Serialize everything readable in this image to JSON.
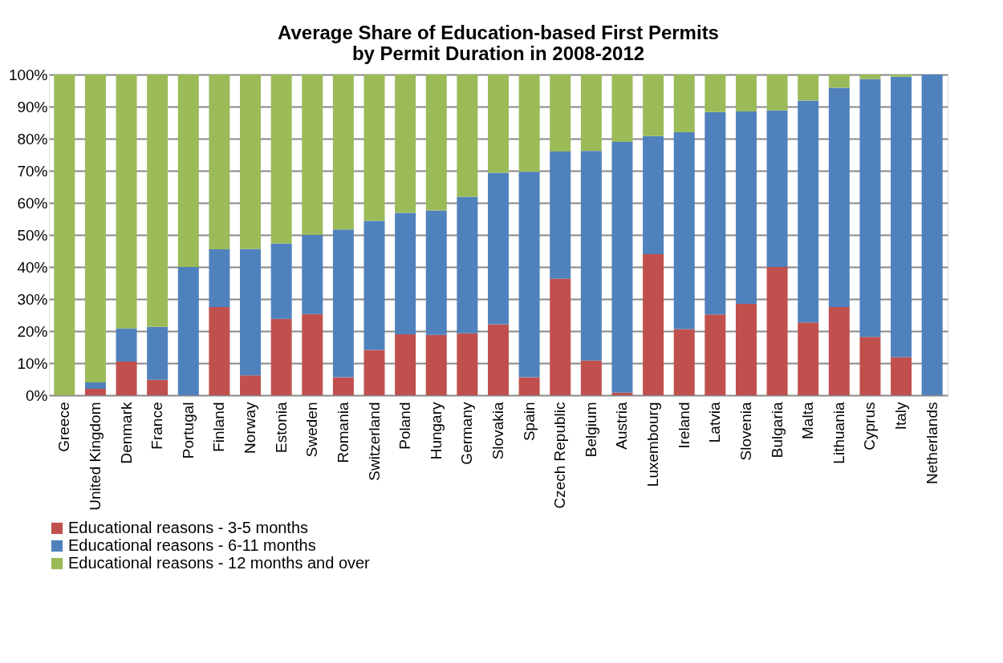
{
  "chart_data": {
    "type": "bar",
    "stacked": true,
    "title": "Average Share of Education-based  First Permits\nby Permit Duration in 2008-2012",
    "categories": [
      "Greece",
      "United Kingdom",
      "Denmark",
      "France",
      "Portugal",
      "Finland",
      "Norway",
      "Estonia",
      "Sweden",
      "Romania",
      "Switzerland",
      "Poland",
      "Hungary",
      "Germany",
      "Slovakia",
      "Spain",
      "Czech Republic",
      "Belgium",
      "Austria",
      "Luxembourg",
      "Ireland",
      "Latvia",
      "Slovenia",
      "Bulgaria",
      "Malta",
      "Lithuania",
      "Cyprus",
      "Italy",
      "Netherlands"
    ],
    "series": [
      {
        "name": "Educational reasons - 3-5 months",
        "color": "#c0504d",
        "values": [
          0,
          2,
          10.5,
          4.8,
          0,
          27.5,
          6.2,
          23.8,
          25.3,
          5.6,
          14.1,
          19,
          18.8,
          19.3,
          22.1,
          5.6,
          36.4,
          10.8,
          0.8,
          44,
          20.6,
          25.2,
          28.5,
          40,
          22.7,
          27.5,
          18.2,
          11.9,
          0
        ]
      },
      {
        "name": "Educational reasons - 6-11 months",
        "color": "#4f81bd",
        "values": [
          0,
          2,
          10.3,
          16.5,
          40,
          18,
          39.4,
          23.5,
          24.7,
          46.1,
          40.3,
          37.9,
          38.8,
          42.6,
          47.3,
          64.1,
          39.6,
          65.4,
          78.2,
          36.8,
          61.4,
          63.1,
          60,
          48.8,
          69.2,
          68.4,
          80.4,
          87.4,
          100
        ]
      },
      {
        "name": "Educational reasons - 12 months and over",
        "color": "#9bbb59",
        "values": [
          100,
          96,
          79.2,
          78.7,
          60,
          54.5,
          54.4,
          52.7,
          50,
          48.3,
          45.6,
          43.1,
          42.4,
          38.1,
          30.6,
          30.3,
          24,
          23.8,
          21,
          19.2,
          18,
          11.7,
          11.5,
          11.2,
          8.1,
          4.1,
          1.4,
          0.7,
          0
        ]
      }
    ],
    "ylim": [
      0,
      100
    ],
    "yticks": [
      {
        "value": 0,
        "label": "0%"
      },
      {
        "value": 10,
        "label": "10%"
      },
      {
        "value": 20,
        "label": "20%"
      },
      {
        "value": 30,
        "label": "30%"
      },
      {
        "value": 40,
        "label": "40%"
      },
      {
        "value": 50,
        "label": "50%"
      },
      {
        "value": 60,
        "label": "60%"
      },
      {
        "value": 70,
        "label": "70%"
      },
      {
        "value": 80,
        "label": "80%"
      },
      {
        "value": 90,
        "label": "90%"
      },
      {
        "value": 100,
        "label": "100%"
      }
    ],
    "grid": "y",
    "legend": "bottom"
  }
}
